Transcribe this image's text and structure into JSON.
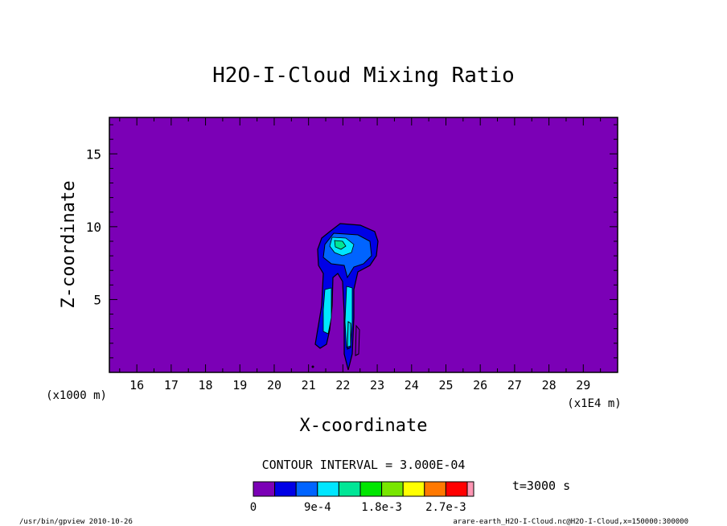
{
  "chart_data": {
    "type": "heatmap",
    "title": "H2O-I-Cloud Mixing Ratio",
    "xlabel": "X-coordinate",
    "ylabel": "Z-coordinate",
    "x_scale_label": "(x1E4 m)",
    "y_scale_label": "(x1000 m)",
    "xlim": [
      15.2,
      30.0
    ],
    "ylim": [
      0,
      17.5
    ],
    "x_ticks": [
      16,
      17,
      18,
      19,
      20,
      21,
      22,
      23,
      24,
      25,
      26,
      27,
      28,
      29
    ],
    "y_ticks": [
      5,
      10,
      15
    ],
    "contour_interval_text": "CONTOUR INTERVAL = 3.000E-04",
    "time_text": "t=3000 s",
    "colorbar": {
      "levels": [
        0,
        0.0003,
        0.0006,
        0.0009,
        0.0012,
        0.0015,
        0.0018,
        0.0021,
        0.0024,
        0.0027,
        0.003
      ],
      "colors": [
        "#7b00b6",
        "#0000e6",
        "#0064ff",
        "#00e6ff",
        "#00e696",
        "#00e600",
        "#78e600",
        "#ffff00",
        "#ff7800",
        "#ff0000",
        "#ff96b4"
      ],
      "tick_labels": [
        "0",
        "9e-4",
        "1.8e-3",
        "2.7e-3"
      ],
      "tick_values": [
        0,
        0.0009,
        0.0018,
        0.0027
      ]
    },
    "background_color": "#7b00b6"
  },
  "footer": {
    "left": "/usr/bin/gpview  2010-10-26",
    "right": "arare-earth_H2O-I-Cloud.nc@H2O-I-Cloud,x=150000:300000"
  }
}
